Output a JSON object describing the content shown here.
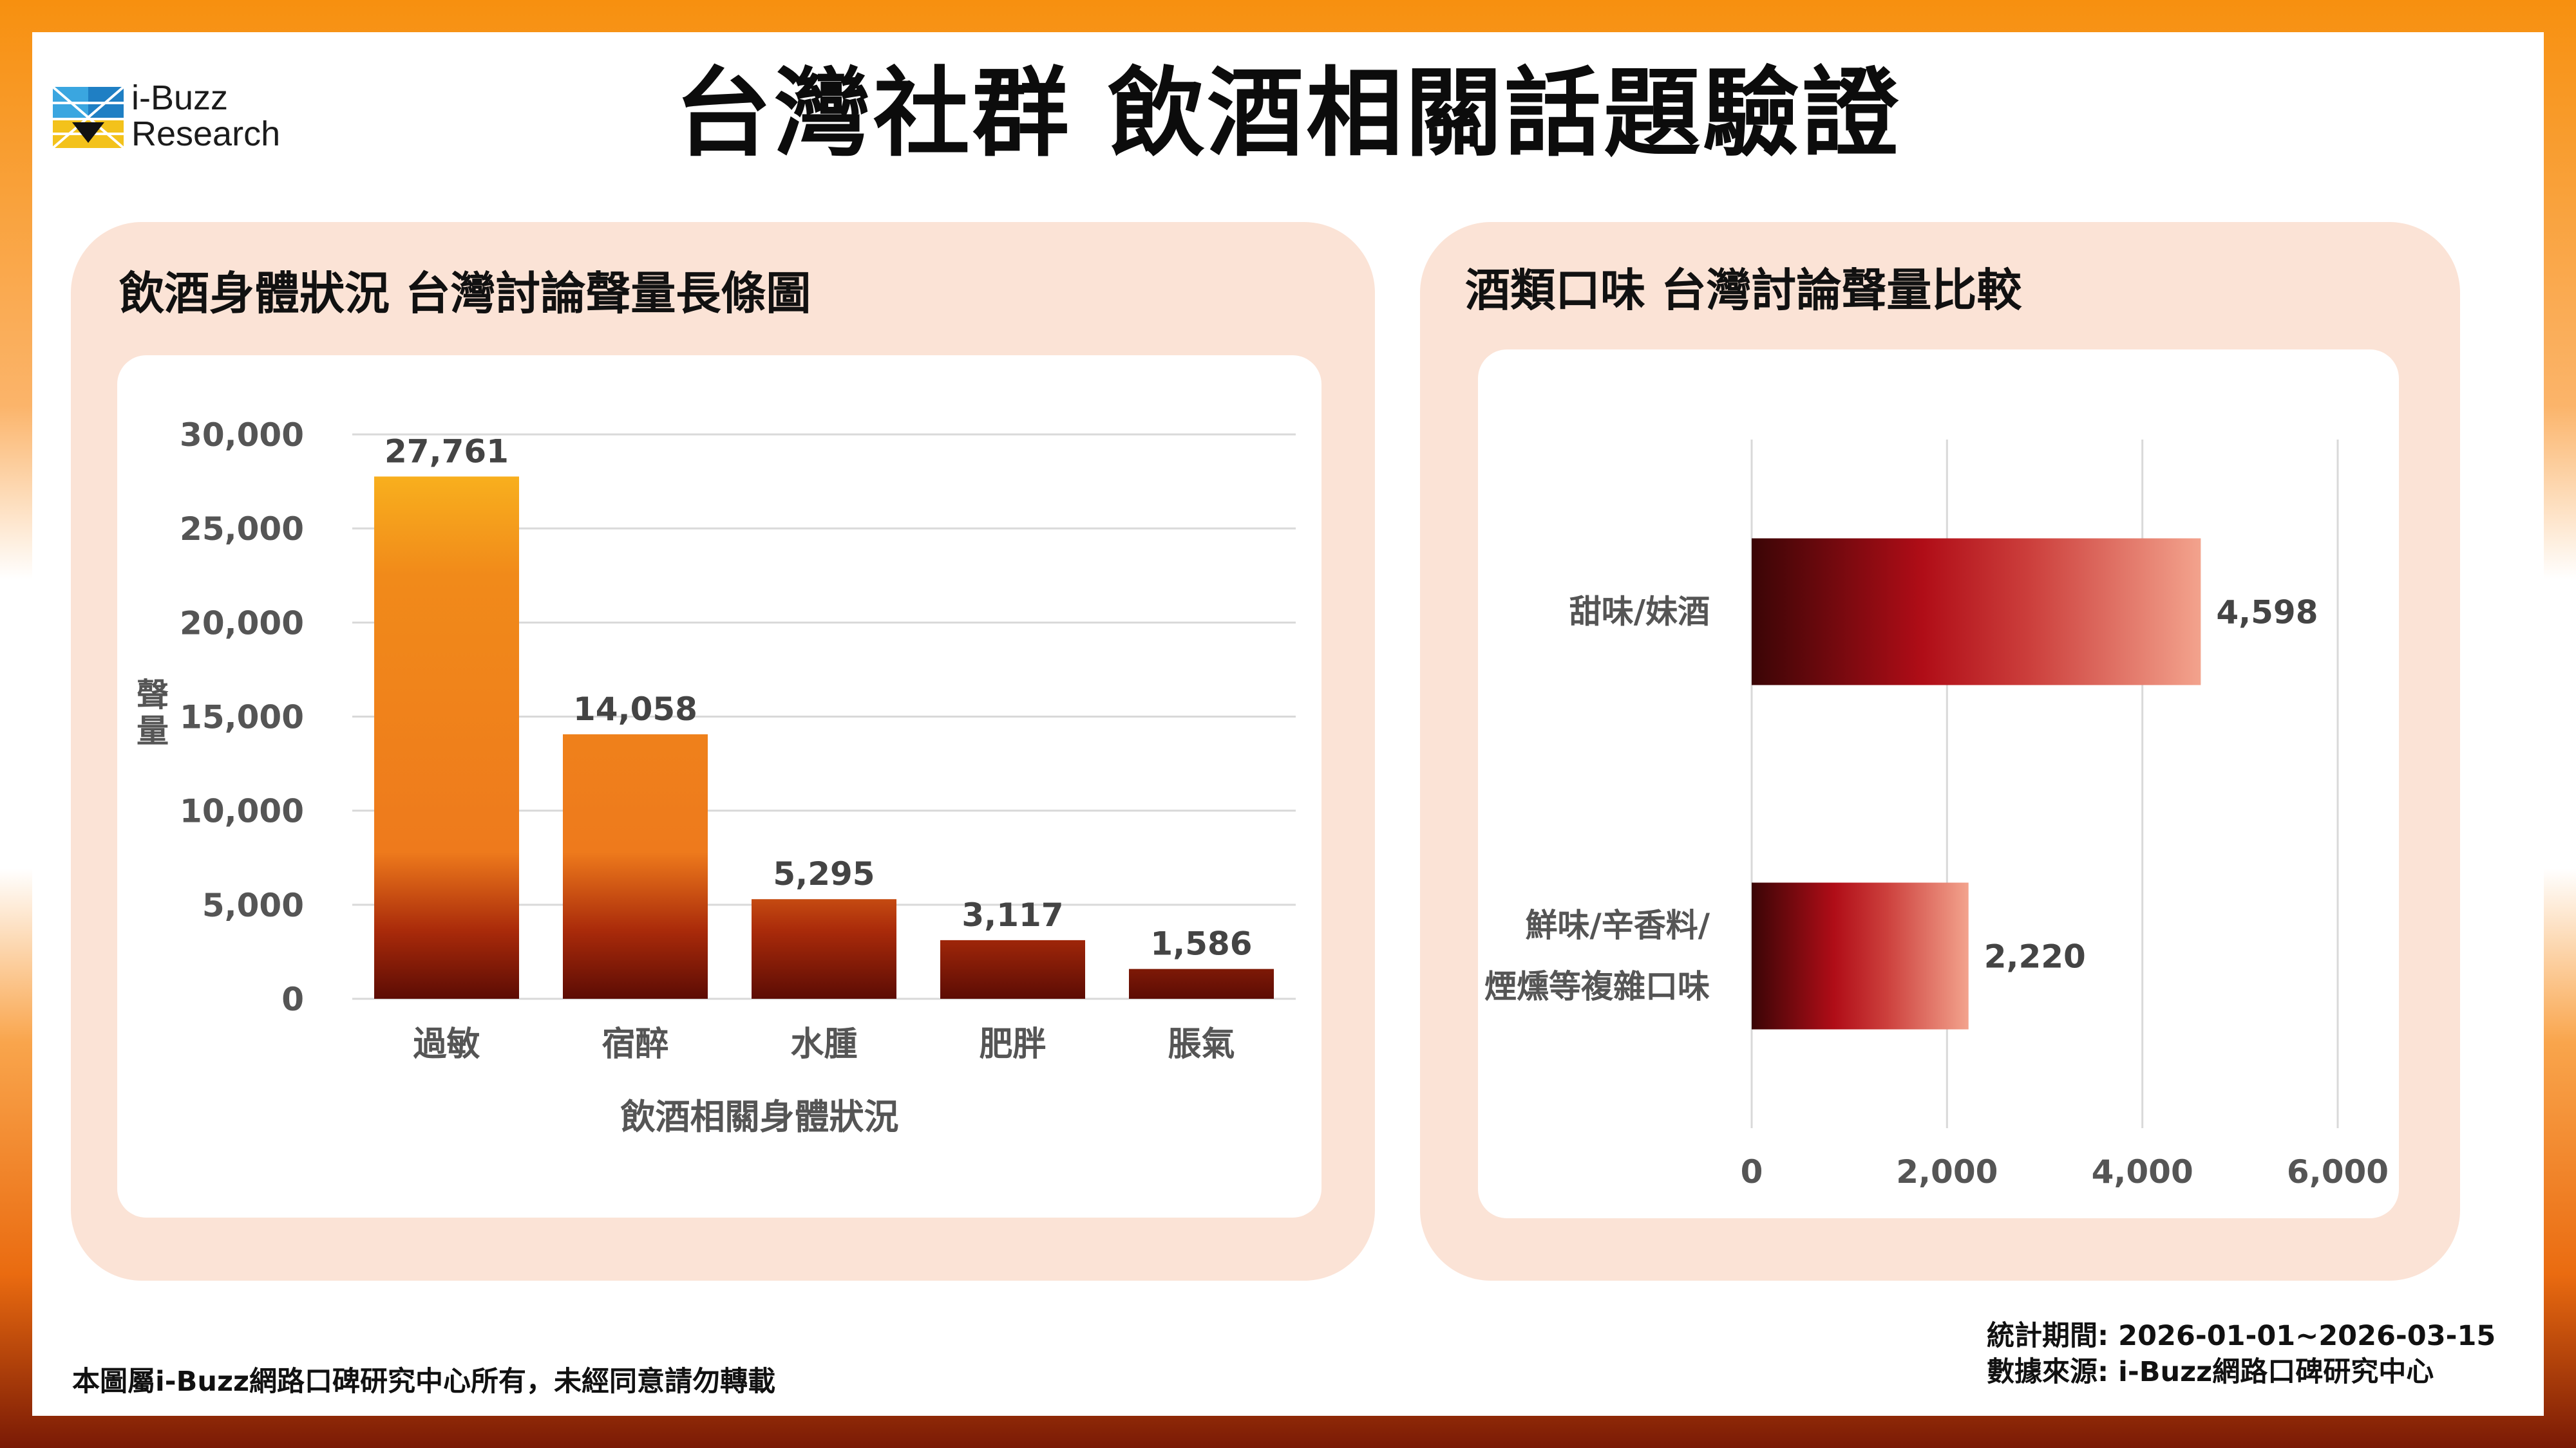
{
  "brand": {
    "line1": "i-Buzz",
    "line2": "Research",
    "logo_icon": "i-buzz-cube-logo"
  },
  "title": "台灣社群 飲酒相關話題驗證",
  "colors": {
    "frame_top": "#f7900f",
    "frame_bottom": "#7a1a05",
    "panel_bg": "#fbe3d6",
    "bar_top": "#fbbf1f",
    "bar_mid": "#ee7a1c",
    "bar_bottom": "#5c0c04",
    "hbar_left": "#3a0506",
    "hbar_mid": "#b00d17",
    "hbar_right": "#f3a38d"
  },
  "left_panel": {
    "title": "飲酒身體狀況 台灣討論聲量長條圖"
  },
  "right_panel": {
    "title": "酒類口味 台灣討論聲量比較"
  },
  "chart_data": [
    {
      "type": "bar",
      "categories": [
        "過敏",
        "宿醉",
        "水腫",
        "肥胖",
        "脹氣"
      ],
      "values": [
        27761,
        14058,
        5295,
        3117,
        1586
      ],
      "value_labels": [
        "27,761",
        "14,058",
        "5,295",
        "3,117",
        "1,586"
      ],
      "yticks": [
        "0",
        "5,000",
        "10,000",
        "15,000",
        "20,000",
        "25,000",
        "30,000"
      ],
      "ylim": [
        0,
        30000
      ],
      "xlabel": "飲酒相關身體狀況",
      "ylabel": "聲量",
      "grid": true
    },
    {
      "type": "bar",
      "orientation": "horizontal",
      "categories": [
        "甜味/妹酒",
        "鮮味/辛香料/煙燻等複雜口味"
      ],
      "category_lines": [
        [
          "甜味/妹酒"
        ],
        [
          "鮮味/辛香料/",
          "煙燻等複雜口味"
        ]
      ],
      "values": [
        4598,
        2220
      ],
      "value_labels": [
        "4,598",
        "2,220"
      ],
      "xticks": [
        "0",
        "2,000",
        "4,000",
        "6,000"
      ],
      "xlim": [
        0,
        6000
      ],
      "grid": true
    }
  ],
  "footer": {
    "copyright": "本圖屬i-Buzz網路口碑研究中心所有，未經同意請勿轉載",
    "period": "統計期間: 2026-01-01~2026-03-15",
    "source": "數據來源: i-Buzz網路口碑研究中心"
  }
}
